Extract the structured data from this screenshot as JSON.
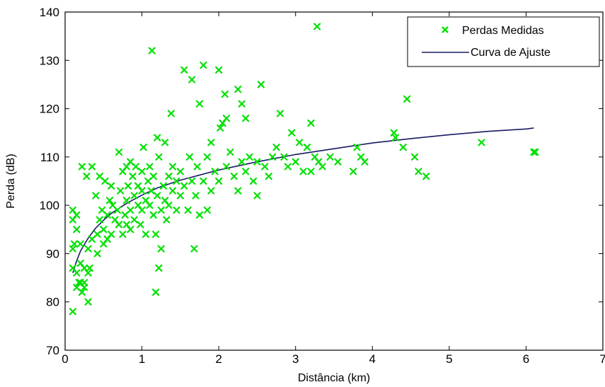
{
  "chart_data": {
    "type": "scatter",
    "title": "",
    "xlabel": "Distância (km)",
    "ylabel": "Perda (dB)",
    "xlim": [
      0,
      7
    ],
    "ylim": [
      70,
      140
    ],
    "xticks": [
      0,
      1,
      2,
      3,
      4,
      5,
      6,
      7
    ],
    "yticks": [
      70,
      80,
      90,
      100,
      110,
      120,
      130,
      140
    ],
    "grid": false,
    "legend_position": "top-right",
    "colors": {
      "points": "#00e000",
      "curve": "#1a1a66",
      "axes": "#000000"
    },
    "series": [
      {
        "name": "Perdas Medidas",
        "kind": "scatter",
        "marker": "x",
        "points": [
          [
            0.1,
            78
          ],
          [
            0.1,
            87
          ],
          [
            0.1,
            91
          ],
          [
            0.1,
            97
          ],
          [
            0.1,
            99
          ],
          [
            0.12,
            92
          ],
          [
            0.15,
            98
          ],
          [
            0.15,
            95
          ],
          [
            0.15,
            86
          ],
          [
            0.15,
            83
          ],
          [
            0.18,
            84
          ],
          [
            0.2,
            84
          ],
          [
            0.2,
            88
          ],
          [
            0.2,
            92
          ],
          [
            0.22,
            82
          ],
          [
            0.22,
            108
          ],
          [
            0.25,
            84
          ],
          [
            0.25,
            83
          ],
          [
            0.25,
            87
          ],
          [
            0.28,
            106
          ],
          [
            0.3,
            80
          ],
          [
            0.3,
            86
          ],
          [
            0.3,
            91
          ],
          [
            0.32,
            87
          ],
          [
            0.35,
            108
          ],
          [
            0.35,
            93
          ],
          [
            0.4,
            102
          ],
          [
            0.42,
            90
          ],
          [
            0.42,
            94
          ],
          [
            0.45,
            97
          ],
          [
            0.45,
            106
          ],
          [
            0.48,
            99
          ],
          [
            0.5,
            92
          ],
          [
            0.5,
            95
          ],
          [
            0.52,
            105
          ],
          [
            0.55,
            98
          ],
          [
            0.55,
            93
          ],
          [
            0.58,
            101
          ],
          [
            0.6,
            94
          ],
          [
            0.6,
            104
          ],
          [
            0.62,
            100
          ],
          [
            0.65,
            97
          ],
          [
            0.68,
            99
          ],
          [
            0.7,
            111
          ],
          [
            0.7,
            96
          ],
          [
            0.72,
            103
          ],
          [
            0.75,
            107
          ],
          [
            0.75,
            94
          ],
          [
            0.78,
            98
          ],
          [
            0.8,
            108
          ],
          [
            0.8,
            101
          ],
          [
            0.8,
            96
          ],
          [
            0.82,
            104
          ],
          [
            0.85,
            109
          ],
          [
            0.85,
            99
          ],
          [
            0.85,
            95
          ],
          [
            0.88,
            106
          ],
          [
            0.9,
            102
          ],
          [
            0.9,
            97
          ],
          [
            0.92,
            108
          ],
          [
            0.95,
            100
          ],
          [
            0.95,
            104
          ],
          [
            0.98,
            96
          ],
          [
            1.0,
            103
          ],
          [
            1.0,
            99
          ],
          [
            1.0,
            107
          ],
          [
            1.02,
            112
          ],
          [
            1.05,
            101
          ],
          [
            1.05,
            94
          ],
          [
            1.08,
            105
          ],
          [
            1.1,
            100
          ],
          [
            1.1,
            108
          ],
          [
            1.12,
            103
          ],
          [
            1.13,
            132
          ],
          [
            1.15,
            98
          ],
          [
            1.15,
            106
          ],
          [
            1.18,
            94
          ],
          [
            1.18,
            82
          ],
          [
            1.2,
            114
          ],
          [
            1.2,
            102
          ],
          [
            1.22,
            87
          ],
          [
            1.22,
            110
          ],
          [
            1.25,
            99
          ],
          [
            1.25,
            91
          ],
          [
            1.28,
            104
          ],
          [
            1.3,
            113
          ],
          [
            1.3,
            101
          ],
          [
            1.32,
            97
          ],
          [
            1.35,
            106
          ],
          [
            1.35,
            100
          ],
          [
            1.38,
            119
          ],
          [
            1.4,
            103
          ],
          [
            1.4,
            108
          ],
          [
            1.45,
            99
          ],
          [
            1.45,
            105
          ],
          [
            1.5,
            102
          ],
          [
            1.5,
            107
          ],
          [
            1.55,
            128
          ],
          [
            1.55,
            104
          ],
          [
            1.6,
            99
          ],
          [
            1.62,
            110
          ],
          [
            1.65,
            126
          ],
          [
            1.65,
            105
          ],
          [
            1.68,
            91
          ],
          [
            1.7,
            102
          ],
          [
            1.72,
            108
          ],
          [
            1.75,
            121
          ],
          [
            1.75,
            98
          ],
          [
            1.8,
            129
          ],
          [
            1.8,
            105
          ],
          [
            1.85,
            110
          ],
          [
            1.85,
            99
          ],
          [
            1.9,
            113
          ],
          [
            1.9,
            103
          ],
          [
            1.95,
            107
          ],
          [
            2.0,
            128
          ],
          [
            2.0,
            105
          ],
          [
            2.02,
            116
          ],
          [
            2.05,
            117
          ],
          [
            2.08,
            123
          ],
          [
            2.1,
            118
          ],
          [
            2.1,
            108
          ],
          [
            2.15,
            111
          ],
          [
            2.2,
            106
          ],
          [
            2.25,
            124
          ],
          [
            2.25,
            103
          ],
          [
            2.3,
            121
          ],
          [
            2.3,
            109
          ],
          [
            2.35,
            118
          ],
          [
            2.35,
            107
          ],
          [
            2.4,
            110
          ],
          [
            2.45,
            105
          ],
          [
            2.5,
            102
          ],
          [
            2.5,
            109
          ],
          [
            2.55,
            125
          ],
          [
            2.6,
            108
          ],
          [
            2.65,
            106
          ],
          [
            2.7,
            110
          ],
          [
            2.75,
            112
          ],
          [
            2.8,
            119
          ],
          [
            2.85,
            110
          ],
          [
            2.9,
            108
          ],
          [
            2.95,
            115
          ],
          [
            3.0,
            109
          ],
          [
            3.05,
            113
          ],
          [
            3.1,
            107
          ],
          [
            3.15,
            112
          ],
          [
            3.2,
            117
          ],
          [
            3.2,
            107
          ],
          [
            3.25,
            110
          ],
          [
            3.28,
            137
          ],
          [
            3.3,
            109
          ],
          [
            3.35,
            108
          ],
          [
            3.45,
            110
          ],
          [
            3.55,
            109
          ],
          [
            3.75,
            107
          ],
          [
            3.8,
            112
          ],
          [
            3.85,
            110
          ],
          [
            3.9,
            109
          ],
          [
            4.28,
            115
          ],
          [
            4.3,
            114
          ],
          [
            4.4,
            112
          ],
          [
            4.45,
            122
          ],
          [
            4.55,
            110
          ],
          [
            4.6,
            107
          ],
          [
            4.7,
            106
          ],
          [
            5.42,
            113
          ],
          [
            6.1,
            111
          ],
          [
            6.12,
            111
          ]
        ]
      },
      {
        "name": "Curva de Ajuste",
        "kind": "line",
        "points": [
          [
            0.1,
            86
          ],
          [
            0.15,
            88.5
          ],
          [
            0.2,
            90.5
          ],
          [
            0.3,
            93.2
          ],
          [
            0.4,
            95.3
          ],
          [
            0.5,
            96.9
          ],
          [
            0.6,
            98.3
          ],
          [
            0.8,
            100.4
          ],
          [
            1.0,
            102.1
          ],
          [
            1.2,
            103.6
          ],
          [
            1.5,
            105.2
          ],
          [
            2.0,
            107.3
          ],
          [
            2.5,
            109.0
          ],
          [
            3.0,
            110.5
          ],
          [
            3.5,
            111.7
          ],
          [
            4.0,
            112.9
          ],
          [
            4.5,
            113.8
          ],
          [
            5.0,
            114.6
          ],
          [
            5.5,
            115.3
          ],
          [
            6.0,
            115.8
          ],
          [
            6.1,
            116.0
          ]
        ]
      }
    ]
  }
}
